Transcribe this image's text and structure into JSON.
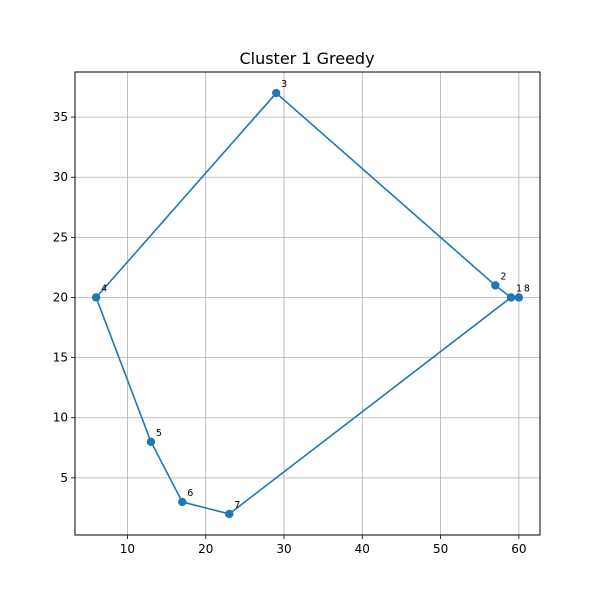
{
  "chart_data": {
    "type": "line",
    "title": "Cluster 1 Greedy",
    "xlabel": "",
    "ylabel": "",
    "xlim": [
      3.3,
      62.7
    ],
    "ylim": [
      0.25,
      38.75
    ],
    "x_ticks": [
      10,
      20,
      30,
      40,
      50,
      60
    ],
    "y_ticks": [
      5,
      10,
      15,
      20,
      25,
      30,
      35
    ],
    "grid": true,
    "series": [
      {
        "color": "#1f77b4",
        "marker": "circle",
        "points": [
          {
            "label": "1",
            "x": 59,
            "y": 20
          },
          {
            "label": "2",
            "x": 57,
            "y": 21
          },
          {
            "label": "3",
            "x": 29,
            "y": 37
          },
          {
            "label": "4",
            "x": 6,
            "y": 20
          },
          {
            "label": "5",
            "x": 13,
            "y": 8
          },
          {
            "label": "6",
            "x": 17,
            "y": 3
          },
          {
            "label": "7",
            "x": 23,
            "y": 2
          },
          {
            "label": "8",
            "x": 60,
            "y": 20
          }
        ],
        "path_order": [
          "1",
          "2",
          "3",
          "4",
          "5",
          "6",
          "7",
          "1"
        ],
        "path_extra": [
          "8"
        ]
      }
    ]
  }
}
